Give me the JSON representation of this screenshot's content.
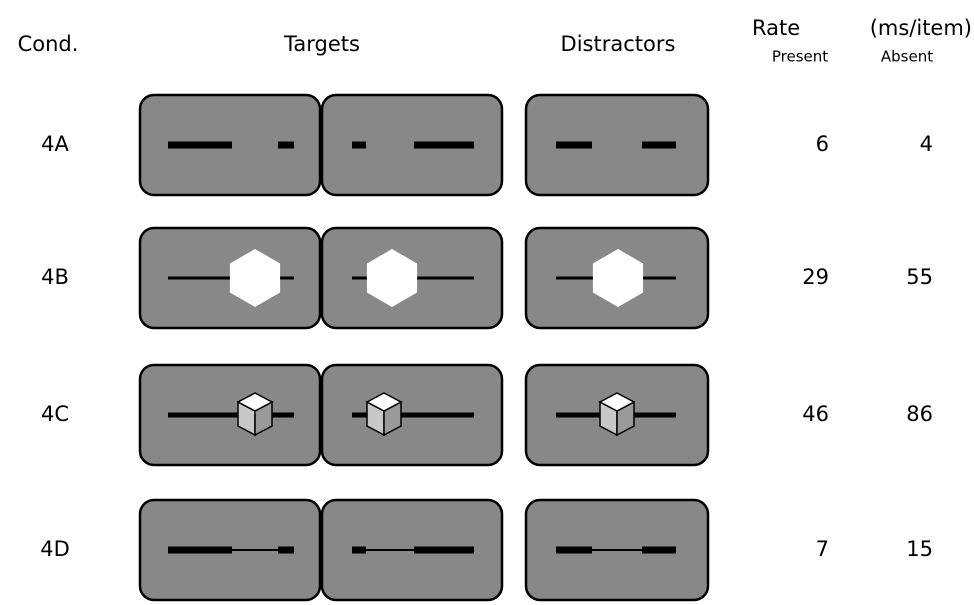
{
  "header": {
    "cond": "Cond.",
    "targets": "Targets",
    "distractors": "Distractors",
    "rate": "Rate",
    "unit": "(ms/item)",
    "present": "Present",
    "absent": "Absent"
  },
  "rows": [
    {
      "cond": "4A",
      "present": 6,
      "absent": 4
    },
    {
      "cond": "4B",
      "present": 29,
      "absent": 55
    },
    {
      "cond": "4C",
      "present": 46,
      "absent": 86
    },
    {
      "cond": "4D",
      "present": 7,
      "absent": 15
    }
  ]
}
